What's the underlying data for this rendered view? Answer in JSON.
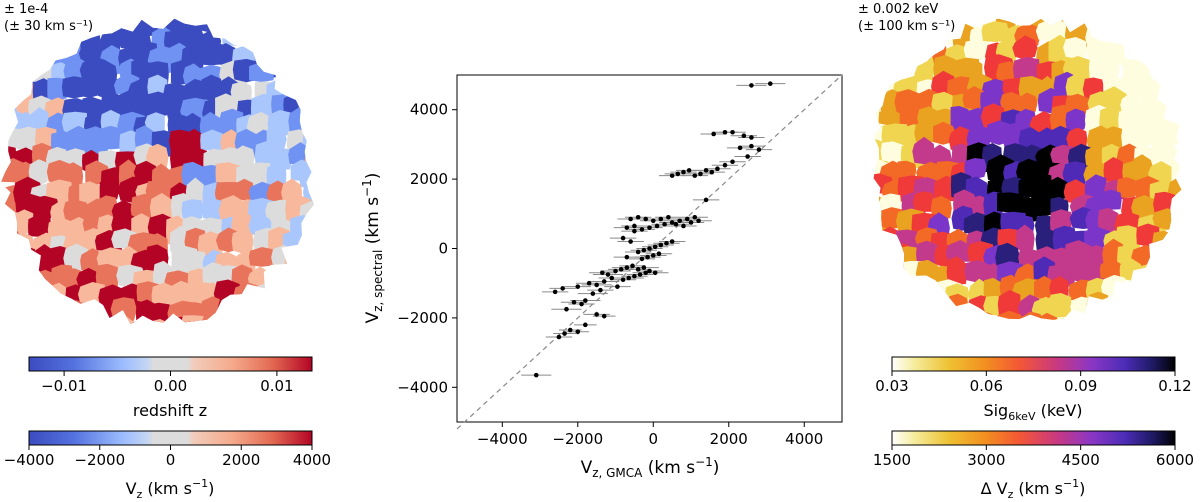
{
  "left_panel": {
    "uncertainty_line1": "± 1e-4",
    "uncertainty_line2": "(± 30 km s⁻¹)",
    "colorbar_top": {
      "cmap": "coolwarm",
      "ticks": [
        "−0.01",
        "0.00",
        "0.01"
      ],
      "tick_values": [
        -0.01,
        0.0,
        0.01
      ],
      "vmin": -0.0133,
      "vmax": 0.0133,
      "label": "redshift z"
    },
    "colorbar_bottom": {
      "cmap": "coolwarm",
      "ticks": [
        "−4000",
        "−2000",
        "0",
        "2000",
        "4000"
      ],
      "tick_values": [
        -4000,
        -2000,
        0,
        2000,
        4000
      ],
      "vmin": -4000,
      "vmax": 4000,
      "label_main": "V",
      "label_sub": "z",
      "label_unit": " (km s",
      "label_sup": "−1",
      "label_end": ")"
    },
    "colors": [
      "#3b4cc0",
      "#6f92f3",
      "#aac7fd",
      "#dddcdc",
      "#f7b89c",
      "#e7745b",
      "#b40426"
    ]
  },
  "right_panel": {
    "uncertainty_line1": "± 0.002 keV",
    "uncertainty_line2": "(± 100 km s⁻¹)",
    "colorbar_top": {
      "cmap": "CMRmap_r",
      "ticks": [
        "0.03",
        "0.06",
        "0.09",
        "0.12"
      ],
      "tick_values": [
        0.03,
        0.06,
        0.09,
        0.12
      ],
      "vmin": 0.03,
      "vmax": 0.12,
      "label_main": "Sig",
      "label_sub": "6keV",
      "label_end": " (keV)"
    },
    "colorbar_bottom": {
      "cmap": "CMRmap_r",
      "ticks": [
        "1500",
        "3000",
        "4500",
        "6000"
      ],
      "tick_values": [
        1500,
        3000,
        4500,
        6000
      ],
      "vmin": 1500,
      "vmax": 6000,
      "label_main": "Δ V",
      "label_sub": "z",
      "label_unit": " (km s",
      "label_sup": "−1",
      "label_end": ")"
    },
    "colors": [
      "#fffde0",
      "#f0d550",
      "#e9a321",
      "#f26a26",
      "#f03a3a",
      "#c33a8c",
      "#7b36c9",
      "#4e2ab6",
      "#2a1f7a",
      "#000000"
    ]
  },
  "chart_data": {
    "type": "scatter",
    "xlabel_main": "V",
    "xlabel_sub": "z, GMCA",
    "xlabel_unit": " (km s",
    "xlabel_sup": "−1",
    "xlabel_end": ")",
    "ylabel_main": "V",
    "ylabel_sub": "z, spectral",
    "ylabel_unit": " (km s",
    "ylabel_sup": "−1",
    "ylabel_end": ")",
    "xlim": [
      -5200,
      5000
    ],
    "ylim": [
      -5000,
      5000
    ],
    "xticks": [
      -4000,
      -2000,
      0,
      2000,
      4000
    ],
    "xtick_labels": [
      "−4000",
      "−2000",
      "0",
      "2000",
      "4000"
    ],
    "yticks": [
      -4000,
      -2000,
      0,
      2000,
      4000
    ],
    "ytick_labels": [
      "−4000",
      "−2000",
      "0",
      "2000",
      "4000"
    ],
    "reference_line": "y=x dashed gray",
    "grid": false,
    "points": [
      [
        -3100,
        -3650,
        400,
        0
      ],
      [
        -2500,
        -2550,
        350,
        60
      ],
      [
        -2350,
        -2450,
        300,
        60
      ],
      [
        -2200,
        -2350,
        300,
        60
      ],
      [
        -2000,
        -2400,
        300,
        80
      ],
      [
        -1800,
        -2200,
        300,
        60
      ],
      [
        -2300,
        -1750,
        400,
        60
      ],
      [
        -1500,
        -1900,
        350,
        80
      ],
      [
        -1300,
        -1950,
        300,
        60
      ],
      [
        -1800,
        -1500,
        400,
        60
      ],
      [
        -1600,
        -1300,
        400,
        60
      ],
      [
        -1400,
        -1200,
        350,
        60
      ],
      [
        -1700,
        -1000,
        350,
        60
      ],
      [
        -1500,
        -1050,
        400,
        60
      ],
      [
        -1300,
        -950,
        400,
        60
      ],
      [
        -1100,
        -850,
        350,
        60
      ],
      [
        -950,
        -1100,
        350,
        60
      ],
      [
        -800,
        -900,
        350,
        60
      ],
      [
        -650,
        -850,
        400,
        60
      ],
      [
        -500,
        -800,
        350,
        60
      ],
      [
        -350,
        -750,
        350,
        60
      ],
      [
        -200,
        -700,
        350,
        60
      ],
      [
        -1000,
        -650,
        400,
        60
      ],
      [
        -850,
        -600,
        350,
        60
      ],
      [
        -700,
        -550,
        400,
        60
      ],
      [
        -550,
        -500,
        350,
        60
      ],
      [
        -400,
        -600,
        350,
        60
      ],
      [
        -250,
        -550,
        400,
        60
      ],
      [
        -100,
        -650,
        350,
        60
      ],
      [
        50,
        -700,
        350,
        60
      ],
      [
        -1200,
        -750,
        400,
        60
      ],
      [
        -1350,
        -700,
        350,
        60
      ],
      [
        -300,
        -300,
        350,
        60
      ],
      [
        -150,
        -250,
        350,
        60
      ],
      [
        0,
        -200,
        350,
        60
      ],
      [
        150,
        -150,
        350,
        60
      ],
      [
        -400,
        -100,
        350,
        60
      ],
      [
        -250,
        -50,
        350,
        60
      ],
      [
        -100,
        0,
        350,
        60
      ],
      [
        50,
        50,
        350,
        60
      ],
      [
        200,
        100,
        350,
        60
      ],
      [
        350,
        150,
        350,
        60
      ],
      [
        500,
        200,
        350,
        60
      ],
      [
        -500,
        500,
        350,
        60
      ],
      [
        -300,
        550,
        350,
        60
      ],
      [
        -100,
        600,
        350,
        60
      ],
      [
        100,
        650,
        350,
        60
      ],
      [
        300,
        700,
        350,
        60
      ],
      [
        500,
        750,
        350,
        60
      ],
      [
        700,
        800,
        350,
        60
      ],
      [
        900,
        850,
        350,
        60
      ],
      [
        1100,
        900,
        350,
        60
      ],
      [
        -600,
        850,
        350,
        60
      ],
      [
        -400,
        900,
        350,
        60
      ],
      [
        -200,
        850,
        350,
        60
      ],
      [
        0,
        800,
        350,
        60
      ],
      [
        200,
        850,
        350,
        60
      ],
      [
        400,
        900,
        350,
        60
      ],
      [
        600,
        700,
        350,
        60
      ],
      [
        800,
        650,
        350,
        60
      ],
      [
        1000,
        750,
        350,
        60
      ],
      [
        1200,
        800,
        350,
        60
      ],
      [
        -700,
        600,
        350,
        60
      ],
      [
        -500,
        650,
        350,
        60
      ],
      [
        1400,
        1400,
        350,
        60
      ],
      [
        500,
        2100,
        350,
        60
      ],
      [
        650,
        2150,
        350,
        60
      ],
      [
        800,
        2200,
        350,
        60
      ],
      [
        950,
        2250,
        350,
        60
      ],
      [
        1100,
        2100,
        350,
        60
      ],
      [
        1250,
        2150,
        350,
        60
      ],
      [
        1400,
        2250,
        350,
        60
      ],
      [
        1550,
        2200,
        350,
        60
      ],
      [
        1700,
        2300,
        350,
        60
      ],
      [
        1900,
        2400,
        350,
        60
      ],
      [
        2100,
        2500,
        350,
        60
      ],
      [
        2500,
        2650,
        350,
        60
      ],
      [
        2300,
        2900,
        350,
        60
      ],
      [
        2600,
        2950,
        350,
        60
      ],
      [
        2800,
        2850,
        350,
        60
      ],
      [
        1600,
        3300,
        350,
        60
      ],
      [
        1900,
        3350,
        350,
        60
      ],
      [
        2100,
        3350,
        350,
        60
      ],
      [
        2400,
        3250,
        350,
        60
      ],
      [
        2600,
        3200,
        350,
        60
      ],
      [
        2600,
        4700,
        400,
        0
      ],
      [
        3100,
        4750,
        400,
        0
      ],
      [
        -2600,
        -1250,
        350,
        60
      ],
      [
        -2400,
        -1150,
        350,
        60
      ],
      [
        -2000,
        -1100,
        350,
        60
      ],
      [
        -1900,
        -1600,
        350,
        60
      ],
      [
        -2100,
        -1550,
        350,
        60
      ],
      [
        -700,
        -250,
        350,
        60
      ],
      [
        -600,
        200,
        350,
        60
      ],
      [
        -800,
        300,
        350,
        60
      ]
    ]
  }
}
